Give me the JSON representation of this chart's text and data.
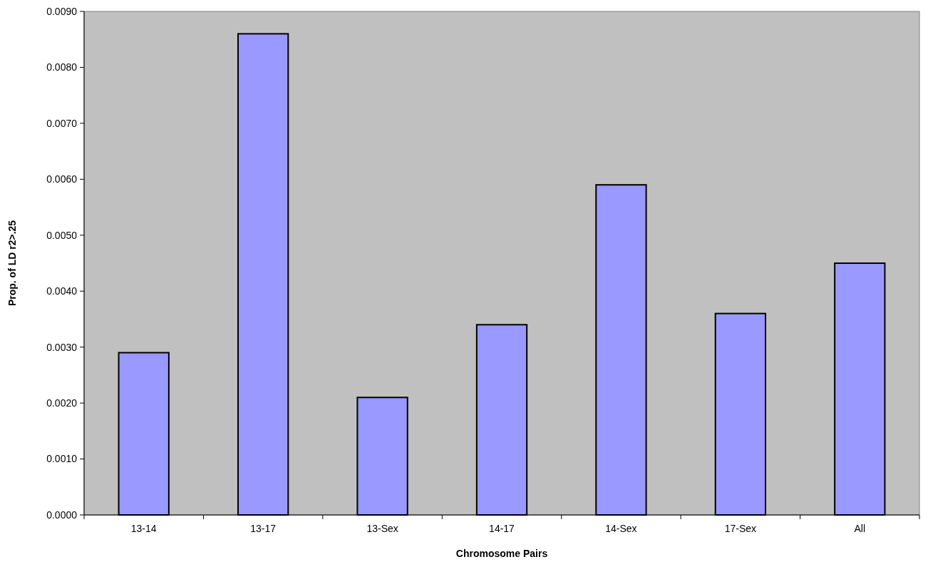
{
  "chart_data": {
    "type": "bar",
    "xlabel": "Chromosome Pairs",
    "ylabel": "Prop. of LD r2>.25",
    "categories": [
      "13-14",
      "13-17",
      "13-Sex",
      "14-17",
      "14-Sex",
      "17-Sex",
      "All"
    ],
    "values": [
      0.0029,
      0.0086,
      0.0021,
      0.0034,
      0.0059,
      0.0036,
      0.0045
    ],
    "color": "#9999ff",
    "ylim": [
      0,
      0.009
    ],
    "yticks": [
      {
        "value": 0,
        "label": "0.0000"
      },
      {
        "value": 0.001,
        "label": "0.0010"
      },
      {
        "value": 0.002,
        "label": "0.0020"
      },
      {
        "value": 0.003,
        "label": "0.0030"
      },
      {
        "value": 0.004,
        "label": "0.0040"
      },
      {
        "value": 0.005,
        "label": "0.0050"
      },
      {
        "value": 0.006,
        "label": "0.0060"
      },
      {
        "value": 0.007,
        "label": "0.0070"
      },
      {
        "value": 0.008,
        "label": "0.0080"
      },
      {
        "value": 0.009,
        "label": "0.0090"
      }
    ],
    "grid": false
  }
}
